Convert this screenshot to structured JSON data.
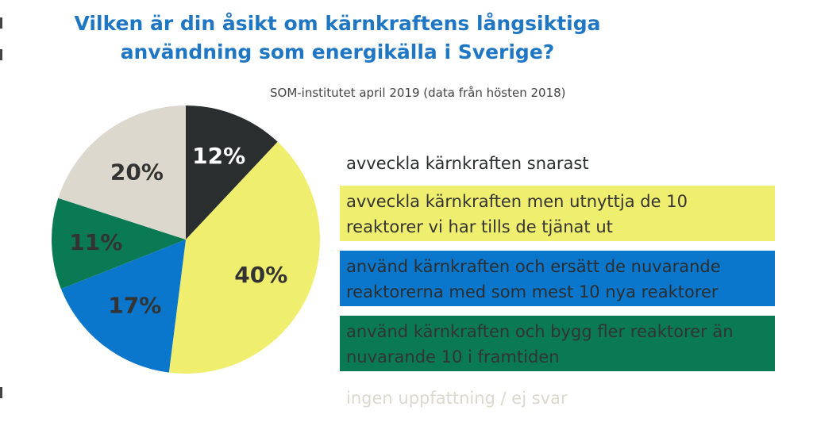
{
  "chart_data": {
    "type": "pie",
    "title": [
      "Vilken är din åsikt om kärnkraftens långsiktiga",
      "användning som energikälla i Sverige?"
    ],
    "subtitle": "SOM-institutet april 2019 (data från hösten 2018)",
    "start_angle_deg": 0,
    "direction": "clockwise",
    "slices": [
      {
        "label": "avveckla kärnkraften snarast",
        "value": 12,
        "value_label": "12%",
        "color": "#2b2e2f",
        "text_color": "#ffffff",
        "legend_bg": "transparent",
        "legend_text": "#2b2e2f"
      },
      {
        "label": "avveckla kärnkraften men utnyttja de 10 reaktorer vi har tills de tjänat ut",
        "value": 40,
        "value_label": "40%",
        "color": "#f0ee6e",
        "text_color": "#333333",
        "legend_bg": "#f0ee6e",
        "legend_text": "#333333"
      },
      {
        "label": "använd kärnkraften och ersätt de nuvarande reaktorerna med som mest 10 nya reaktorer",
        "value": 17,
        "value_label": "17%",
        "color": "#0a77cc",
        "text_color": "#333333",
        "legend_bg": "#0a77cc",
        "legend_text": "#2b2e2f"
      },
      {
        "label": "använd kärnkraften och bygg fler reaktorer än nuvarande 10 i framtiden",
        "value": 11,
        "value_label": "11%",
        "color": "#0a7a55",
        "text_color": "#333333",
        "legend_bg": "#0a7a55",
        "legend_text": "#333333"
      },
      {
        "label": "ingen uppfattning / ej svar",
        "value": 20,
        "value_label": "20%",
        "color": "#dcd8ce",
        "text_color": "#333333",
        "legend_bg": "transparent",
        "legend_text": "#dcd8ce"
      }
    ]
  }
}
